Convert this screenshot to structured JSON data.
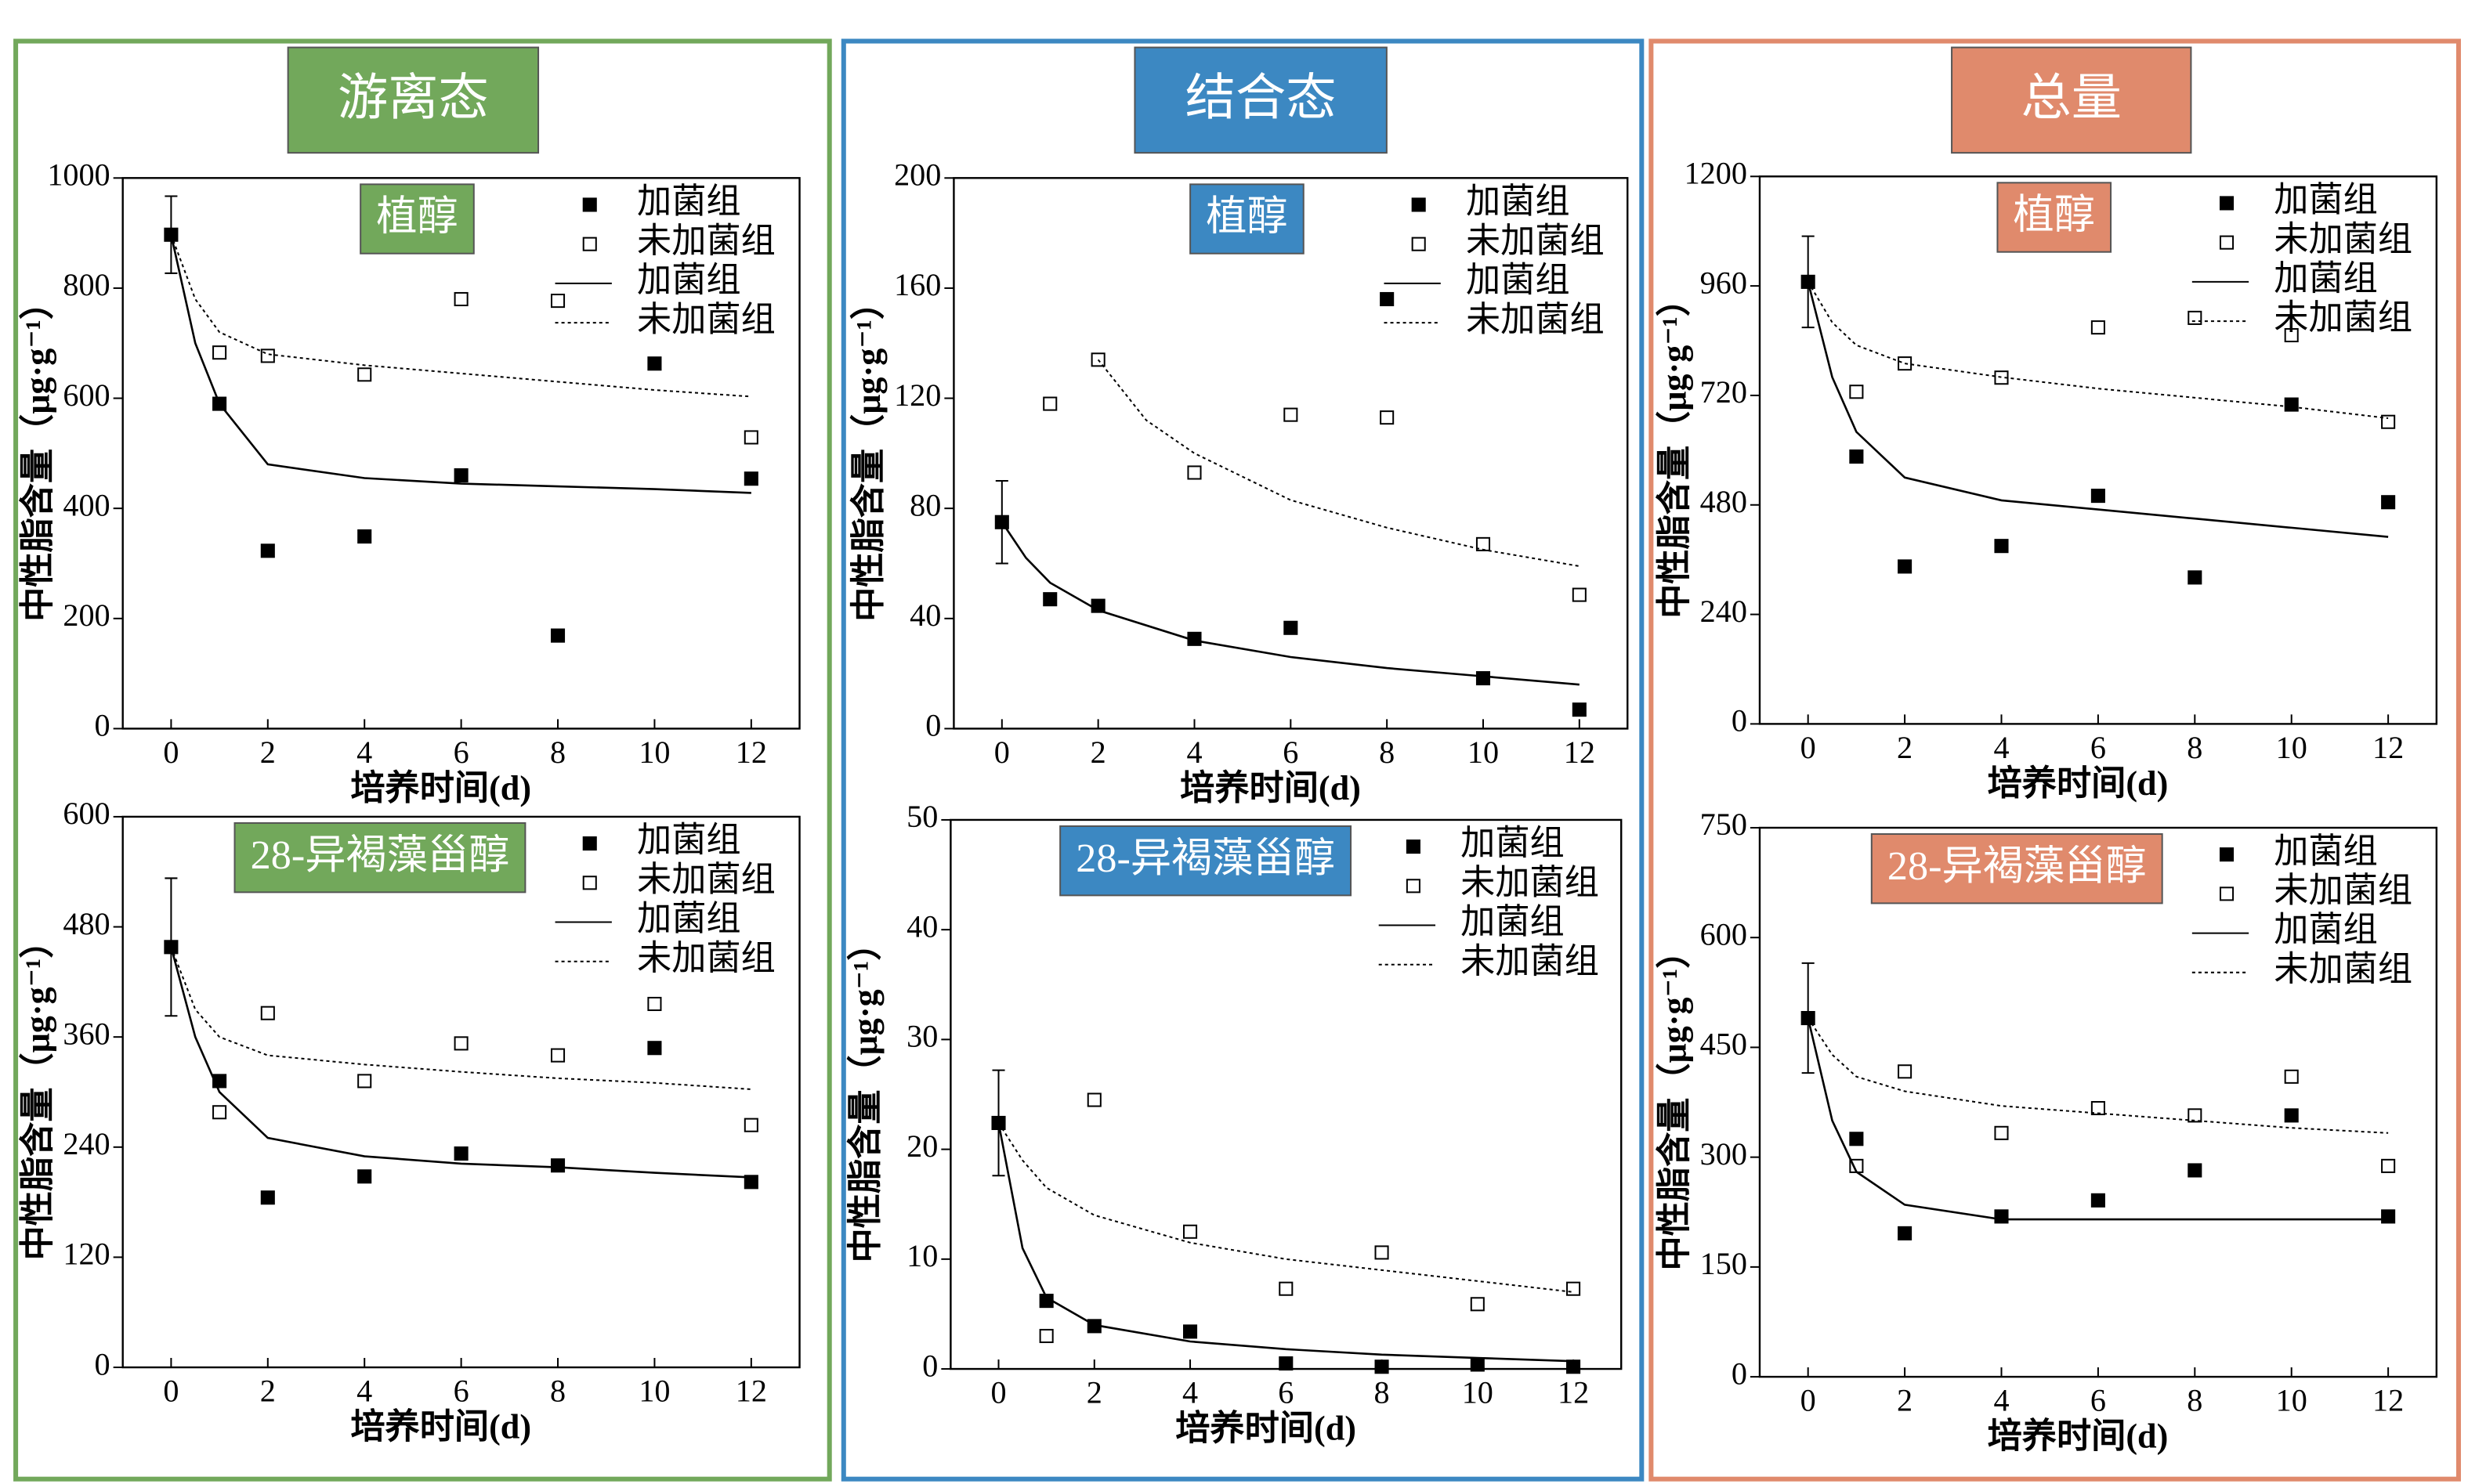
{
  "panels": [
    {
      "title": "游离态",
      "color": "#72a85b"
    },
    {
      "title": "结合态",
      "color": "#3c88c2"
    },
    {
      "title": "总量",
      "color": "#e08a6c"
    }
  ],
  "chart_data": [
    {
      "type": "scatter",
      "label": "植醇",
      "xlabel": "培养时间(d)",
      "ylabel": "中性脂含量（μg·g⁻¹）",
      "xlim": [
        -1,
        13
      ],
      "xticks": [
        0,
        2,
        4,
        6,
        8,
        10,
        12
      ],
      "ylim": [
        0,
        1000
      ],
      "yticks": [
        0,
        200,
        400,
        600,
        800,
        1000
      ],
      "series": [
        {
          "name": "加菌组",
          "marker": "filled",
          "color": "#000000",
          "x": [
            0,
            1,
            2,
            4,
            6,
            8,
            10,
            12
          ],
          "values": [
            897,
            590,
            323,
            349,
            460,
            169,
            663,
            454
          ],
          "errors": [
            70,
            null,
            null,
            null,
            null,
            null,
            null,
            null
          ]
        },
        {
          "name": "未加菌组",
          "marker": "open",
          "color": "#000000",
          "x": [
            1,
            2,
            4,
            6,
            8,
            12
          ],
          "values": [
            683,
            677,
            643,
            780,
            777,
            529
          ]
        },
        {
          "name": "加菌组",
          "line": "solid",
          "color": "#000000",
          "x": [
            0,
            0.5,
            1,
            2,
            4,
            6,
            8,
            10,
            12
          ],
          "values": [
            897,
            700,
            590,
            480,
            455,
            445,
            440,
            435,
            428
          ]
        },
        {
          "name": "未加菌组",
          "line": "dotted",
          "color": "#000000",
          "x": [
            0,
            0.5,
            1,
            2,
            4,
            6,
            8,
            10,
            12
          ],
          "values": [
            897,
            780,
            720,
            680,
            660,
            645,
            630,
            615,
            603
          ]
        }
      ]
    },
    {
      "type": "scatter",
      "label": "植醇",
      "xlabel": "培养时间(d)",
      "ylabel": "中性脂含量（μg·g⁻¹）",
      "xlim": [
        -1,
        13
      ],
      "xticks": [
        0,
        2,
        4,
        6,
        8,
        10,
        12
      ],
      "ylim": [
        0,
        200
      ],
      "yticks": [
        0,
        40,
        80,
        120,
        160,
        200
      ],
      "series": [
        {
          "name": "加菌组",
          "marker": "filled",
          "color": "#000000",
          "x": [
            0,
            1,
            2,
            4,
            6,
            8,
            10,
            12
          ],
          "values": [
            75,
            47,
            44.6,
            32.6,
            36.6,
            156,
            18.3,
            6.9
          ],
          "errors": [
            15,
            null,
            null,
            null,
            null,
            null,
            null,
            null
          ]
        },
        {
          "name": "未加菌组",
          "marker": "open",
          "color": "#000000",
          "x": [
            1,
            2,
            4,
            6,
            8,
            10,
            12
          ],
          "values": [
            118,
            134,
            93,
            114,
            113,
            67,
            48.6
          ]
        },
        {
          "name": "加菌组",
          "line": "solid",
          "color": "#000000",
          "x": [
            0,
            0.5,
            1,
            2,
            4,
            6,
            8,
            10,
            12
          ],
          "values": [
            75,
            62,
            53,
            43,
            32,
            26,
            22,
            19,
            16
          ]
        },
        {
          "name": "未加菌组",
          "line": "dotted",
          "color": "#000000",
          "x": [
            2,
            3,
            4,
            6,
            8,
            10,
            12
          ],
          "values": [
            134,
            112,
            100,
            83,
            73,
            65,
            59
          ]
        }
      ]
    },
    {
      "type": "scatter",
      "label": "植醇",
      "xlabel": "培养时间(d)",
      "ylabel": "中性脂含量（μg·g⁻¹）",
      "xlim": [
        -1,
        13
      ],
      "xticks": [
        0,
        2,
        4,
        6,
        8,
        10,
        12
      ],
      "ylim": [
        0,
        1200
      ],
      "yticks": [
        0,
        240,
        480,
        720,
        960,
        1200
      ],
      "series": [
        {
          "name": "加菌组",
          "marker": "filled",
          "color": "#000000",
          "x": [
            0,
            1,
            2,
            4,
            6,
            8,
            10,
            12
          ],
          "values": [
            969,
            586,
            345,
            390,
            500,
            321,
            700,
            486
          ],
          "errors": [
            100,
            null,
            null,
            null,
            null,
            null,
            null,
            null
          ]
        },
        {
          "name": "未加菌组",
          "marker": "open",
          "color": "#000000",
          "x": [
            1,
            2,
            4,
            6,
            8,
            10,
            12
          ],
          "values": [
            728,
            790,
            759,
            869,
            890,
            852,
            662
          ]
        },
        {
          "name": "加菌组",
          "line": "solid",
          "color": "#000000",
          "x": [
            0,
            0.5,
            1,
            2,
            4,
            6,
            8,
            10,
            12
          ],
          "values": [
            969,
            760,
            640,
            540,
            490,
            470,
            450,
            430,
            410
          ]
        },
        {
          "name": "未加菌组",
          "line": "dotted",
          "color": "#000000",
          "x": [
            0,
            0.5,
            1,
            2,
            4,
            6,
            8,
            10,
            12
          ],
          "values": [
            969,
            880,
            830,
            790,
            760,
            735,
            715,
            695,
            670
          ]
        }
      ]
    },
    {
      "type": "scatter",
      "label": "28-异褐藻甾醇",
      "xlabel": "培养时间(d)",
      "ylabel": "中性脂含量（μg·g⁻¹）",
      "xlim": [
        -1,
        13
      ],
      "xticks": [
        0,
        2,
        4,
        6,
        8,
        10,
        12
      ],
      "ylim": [
        0,
        600
      ],
      "yticks": [
        0,
        120,
        240,
        360,
        480,
        600
      ],
      "series": [
        {
          "name": "加菌组",
          "marker": "filled",
          "color": "#000000",
          "x": [
            0,
            1,
            2,
            4,
            6,
            8,
            10,
            12
          ],
          "values": [
            458,
            312,
            185,
            208,
            233,
            220,
            348,
            202
          ],
          "errors": [
            75,
            null,
            null,
            null,
            null,
            null,
            null,
            null
          ]
        },
        {
          "name": "未加菌组",
          "marker": "open",
          "color": "#000000",
          "x": [
            1,
            2,
            4,
            6,
            8,
            10,
            12
          ],
          "values": [
            278,
            386,
            312,
            353,
            340,
            396,
            264
          ]
        },
        {
          "name": "加菌组",
          "line": "solid",
          "color": "#000000",
          "x": [
            0,
            0.5,
            1,
            2,
            4,
            6,
            8,
            10,
            12
          ],
          "values": [
            458,
            360,
            300,
            250,
            230,
            222,
            218,
            212,
            207
          ]
        },
        {
          "name": "未加菌组",
          "line": "dotted",
          "color": "#000000",
          "x": [
            0,
            0.5,
            1,
            2,
            4,
            6,
            8,
            10,
            12
          ],
          "values": [
            458,
            390,
            360,
            340,
            330,
            322,
            315,
            310,
            303
          ]
        }
      ]
    },
    {
      "type": "scatter",
      "label": "28-异褐藻甾醇",
      "xlabel": "培养时间(d)",
      "ylabel": "中性脂含量（μg·g⁻¹）",
      "xlim": [
        -1,
        13
      ],
      "xticks": [
        0,
        2,
        4,
        6,
        8,
        10,
        12
      ],
      "ylim": [
        0,
        50
      ],
      "yticks": [
        0,
        10,
        20,
        30,
        40,
        50
      ],
      "series": [
        {
          "name": "加菌组",
          "marker": "filled",
          "color": "#000000",
          "x": [
            0,
            1,
            2,
            4,
            6,
            8,
            10,
            12
          ],
          "values": [
            22.4,
            6.2,
            3.9,
            3.4,
            0.5,
            0.2,
            0.4,
            0.2
          ],
          "errors": [
            4.8,
            null,
            null,
            null,
            null,
            null,
            null,
            null
          ]
        },
        {
          "name": "未加菌组",
          "marker": "open",
          "color": "#000000",
          "x": [
            1,
            2,
            4,
            6,
            8,
            10,
            12
          ],
          "values": [
            3.0,
            24.5,
            12.5,
            7.3,
            10.6,
            5.9,
            7.3
          ]
        },
        {
          "name": "加菌组",
          "line": "solid",
          "color": "#000000",
          "x": [
            0,
            0.5,
            1,
            2,
            4,
            6,
            8,
            10,
            12
          ],
          "values": [
            22.4,
            11,
            6.5,
            4,
            2.5,
            1.8,
            1.3,
            1,
            0.7
          ]
        },
        {
          "name": "未加菌组",
          "line": "dotted",
          "color": "#000000",
          "x": [
            0,
            0.5,
            1,
            2,
            4,
            6,
            8,
            10,
            12
          ],
          "values": [
            22.4,
            19,
            16.5,
            14,
            11.5,
            10,
            9,
            8,
            7
          ]
        }
      ]
    },
    {
      "type": "scatter",
      "label": "28-异褐藻甾醇",
      "xlabel": "培养时间(d)",
      "ylabel": "中性脂含量（μg·g⁻¹）",
      "xlim": [
        -1,
        13
      ],
      "xticks": [
        0,
        2,
        4,
        6,
        8,
        10,
        12
      ],
      "ylim": [
        0,
        750
      ],
      "yticks": [
        0,
        150,
        300,
        450,
        600,
        750
      ],
      "series": [
        {
          "name": "加菌组",
          "marker": "filled",
          "color": "#000000",
          "x": [
            0,
            1,
            2,
            4,
            6,
            8,
            10,
            12
          ],
          "values": [
            490,
            325,
            196,
            219,
            241,
            282,
            357,
            219
          ],
          "errors": [
            75,
            null,
            null,
            null,
            null,
            null,
            null,
            null
          ]
        },
        {
          "name": "未加菌组",
          "marker": "open",
          "color": "#000000",
          "x": [
            1,
            2,
            4,
            6,
            8,
            10,
            12
          ],
          "values": [
            288,
            417,
            333,
            367,
            357,
            410,
            288
          ]
        },
        {
          "name": "加菌组",
          "line": "solid",
          "color": "#000000",
          "x": [
            0,
            0.5,
            1,
            2,
            4,
            6,
            8,
            10,
            12
          ],
          "values": [
            490,
            350,
            280,
            235,
            215,
            215,
            215,
            215,
            215
          ]
        },
        {
          "name": "未加菌组",
          "line": "dotted",
          "color": "#000000",
          "x": [
            0,
            0.5,
            1,
            2,
            4,
            6,
            8,
            10,
            12
          ],
          "values": [
            490,
            440,
            410,
            390,
            370,
            360,
            350,
            340,
            333
          ]
        }
      ]
    }
  ]
}
